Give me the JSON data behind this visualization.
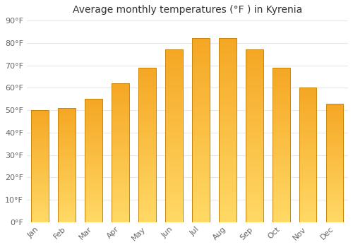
{
  "months": [
    "Jan",
    "Feb",
    "Mar",
    "Apr",
    "May",
    "Jun",
    "Jul",
    "Aug",
    "Sep",
    "Oct",
    "Nov",
    "Dec"
  ],
  "values": [
    50,
    51,
    55,
    62,
    69,
    77,
    82,
    82,
    77,
    69,
    60,
    53
  ],
  "title": "Average monthly temperatures (°F ) in Kyrenia",
  "bar_color_top": "#F5A623",
  "bar_color_bottom": "#FFD966",
  "bar_edge_color": "#C8860A",
  "ylim": [
    0,
    90
  ],
  "ytick_step": 10,
  "background_color": "#ffffff",
  "grid_color": "#e8e8e8",
  "axis_label_color": "#666666",
  "title_color": "#333333",
  "title_fontsize": 10,
  "tick_fontsize": 8,
  "bar_width": 0.65
}
